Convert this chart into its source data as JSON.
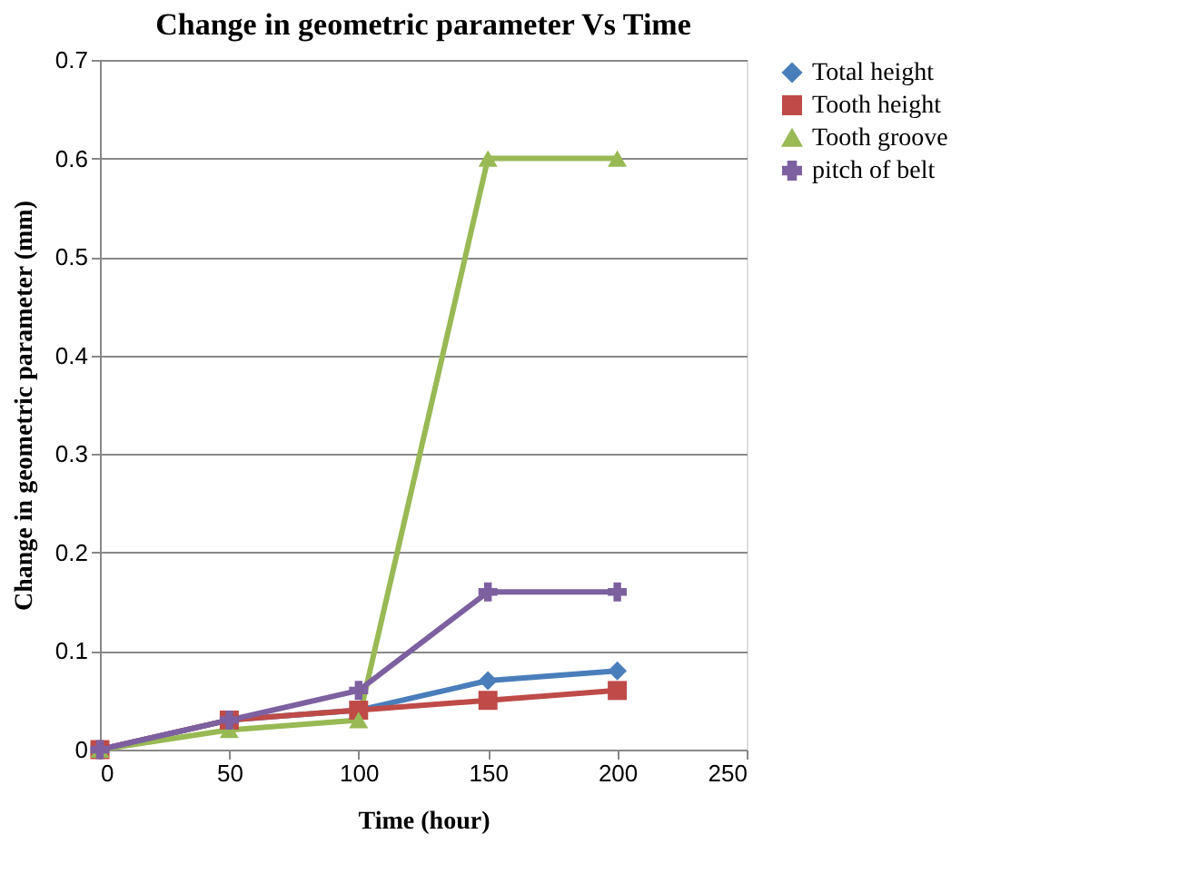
{
  "chart_data": {
    "type": "line",
    "title": "Change in geometric parameter Vs Time",
    "xlabel": "Time (hour)",
    "ylabel": "Change in geometric parameter (mm)",
    "x": [
      0,
      50,
      100,
      150,
      200
    ],
    "series": [
      {
        "name": "Total height",
        "color": "#4a7ebb",
        "marker": "diamond",
        "values": [
          0,
          0.03,
          0.04,
          0.07,
          0.08
        ]
      },
      {
        "name": "Tooth height",
        "color": "#be4b48",
        "marker": "square",
        "values": [
          0,
          0.03,
          0.04,
          0.05,
          0.06
        ]
      },
      {
        "name": "Tooth groove",
        "color": "#98b954",
        "marker": "triangle",
        "values": [
          0,
          0.02,
          0.03,
          0.6,
          0.6
        ]
      },
      {
        "name": "pitch of belt",
        "color": "#7d60a0",
        "marker": "cross",
        "values": [
          0,
          0.03,
          0.06,
          0.16,
          0.16
        ]
      }
    ],
    "xlim": [
      0,
      250
    ],
    "xticks": [
      0,
      50,
      100,
      150,
      200,
      250
    ],
    "ylim": [
      0,
      0.7
    ],
    "yticks": [
      0,
      0.1,
      0.2,
      0.3,
      0.4,
      0.5,
      0.6,
      0.7
    ],
    "grid": "y",
    "legend": "right",
    "line_style": "solid"
  }
}
